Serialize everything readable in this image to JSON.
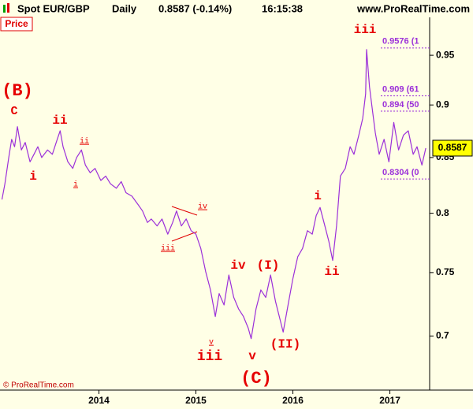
{
  "chart_data": {
    "type": "line",
    "title": "Spot EUR/GBP",
    "frequency": "Daily",
    "quote": "0.8587 (-0.14%)",
    "time": "16:15:38",
    "source": "www.ProRealTime.com",
    "panel_label": "Price",
    "copyright": "© ProRealTime.com",
    "color": "#9b30d9",
    "log_scale": true,
    "grid": false,
    "xlim": [
      2012.98,
      2017.41
    ],
    "xticks": [
      2014,
      2015,
      2016,
      2017
    ],
    "ylim": [
      0.66,
      0.99
    ],
    "yticks": [
      0.7,
      0.75,
      0.8,
      0.85,
      0.9,
      0.95
    ],
    "x": [
      2013.0,
      2013.03,
      2013.07,
      2013.1,
      2013.13,
      2013.16,
      2013.2,
      2013.24,
      2013.29,
      2013.33,
      2013.37,
      2013.41,
      2013.47,
      2013.52,
      2013.57,
      2013.6,
      2013.63,
      2013.68,
      2013.73,
      2013.77,
      2013.82,
      2013.86,
      2013.91,
      2013.96,
      2014.02,
      2014.07,
      2014.12,
      2014.18,
      2014.23,
      2014.28,
      2014.34,
      2014.4,
      2014.45,
      2014.5,
      2014.54,
      2014.6,
      2014.65,
      2014.71,
      2014.76,
      2014.8,
      2014.85,
      2014.9,
      2014.95,
      2015.0,
      2015.05,
      2015.1,
      2015.15,
      2015.2,
      2015.24,
      2015.29,
      2015.34,
      2015.39,
      2015.44,
      2015.49,
      2015.54,
      2015.57,
      2015.62,
      2015.67,
      2015.72,
      2015.77,
      2015.82,
      2015.87,
      2015.9,
      2015.95,
      2016.0,
      2016.05,
      2016.1,
      2016.15,
      2016.2,
      2016.24,
      2016.28,
      2016.33,
      2016.37,
      2016.41,
      2016.45,
      2016.49,
      2016.54,
      2016.59,
      2016.63,
      2016.68,
      2016.72,
      2016.75,
      2016.76,
      2016.79,
      2016.82,
      2016.85,
      2016.89,
      2016.94,
      2016.99,
      2017.04,
      2017.09,
      2017.14,
      2017.19,
      2017.24,
      2017.28,
      2017.33,
      2017.37
    ],
    "values": [
      0.812,
      0.826,
      0.85,
      0.867,
      0.86,
      0.879,
      0.857,
      0.864,
      0.846,
      0.853,
      0.86,
      0.85,
      0.857,
      0.853,
      0.867,
      0.875,
      0.86,
      0.846,
      0.84,
      0.85,
      0.857,
      0.843,
      0.836,
      0.84,
      0.829,
      0.833,
      0.826,
      0.822,
      0.828,
      0.818,
      0.815,
      0.808,
      0.802,
      0.792,
      0.795,
      0.789,
      0.795,
      0.782,
      0.792,
      0.802,
      0.789,
      0.795,
      0.785,
      0.782,
      0.77,
      0.751,
      0.736,
      0.715,
      0.733,
      0.724,
      0.748,
      0.73,
      0.721,
      0.715,
      0.706,
      0.698,
      0.721,
      0.736,
      0.73,
      0.748,
      0.727,
      0.712,
      0.703,
      0.724,
      0.745,
      0.763,
      0.77,
      0.785,
      0.782,
      0.798,
      0.805,
      0.789,
      0.776,
      0.76,
      0.789,
      0.833,
      0.84,
      0.86,
      0.853,
      0.871,
      0.887,
      0.911,
      0.956,
      0.918,
      0.895,
      0.873,
      0.853,
      0.867,
      0.846,
      0.883,
      0.857,
      0.871,
      0.875,
      0.853,
      0.86,
      0.843,
      0.8587
    ],
    "annotations": [
      "(B)",
      "C",
      "i",
      "ii",
      "ii",
      "i",
      "iv",
      "iii",
      "iii",
      "v",
      "iv",
      "(I)",
      "v",
      "(C)",
      "(II)",
      "i",
      "ii",
      "iii"
    ],
    "levels": [
      {
        "value": 0.9576,
        "label": "0.9576 (1"
      },
      {
        "value": 0.909,
        "label": "0.909 (61"
      },
      {
        "value": 0.894,
        "label": "0.894 (50"
      },
      {
        "value": 0.8304,
        "label": "0.8304 (0"
      }
    ]
  }
}
